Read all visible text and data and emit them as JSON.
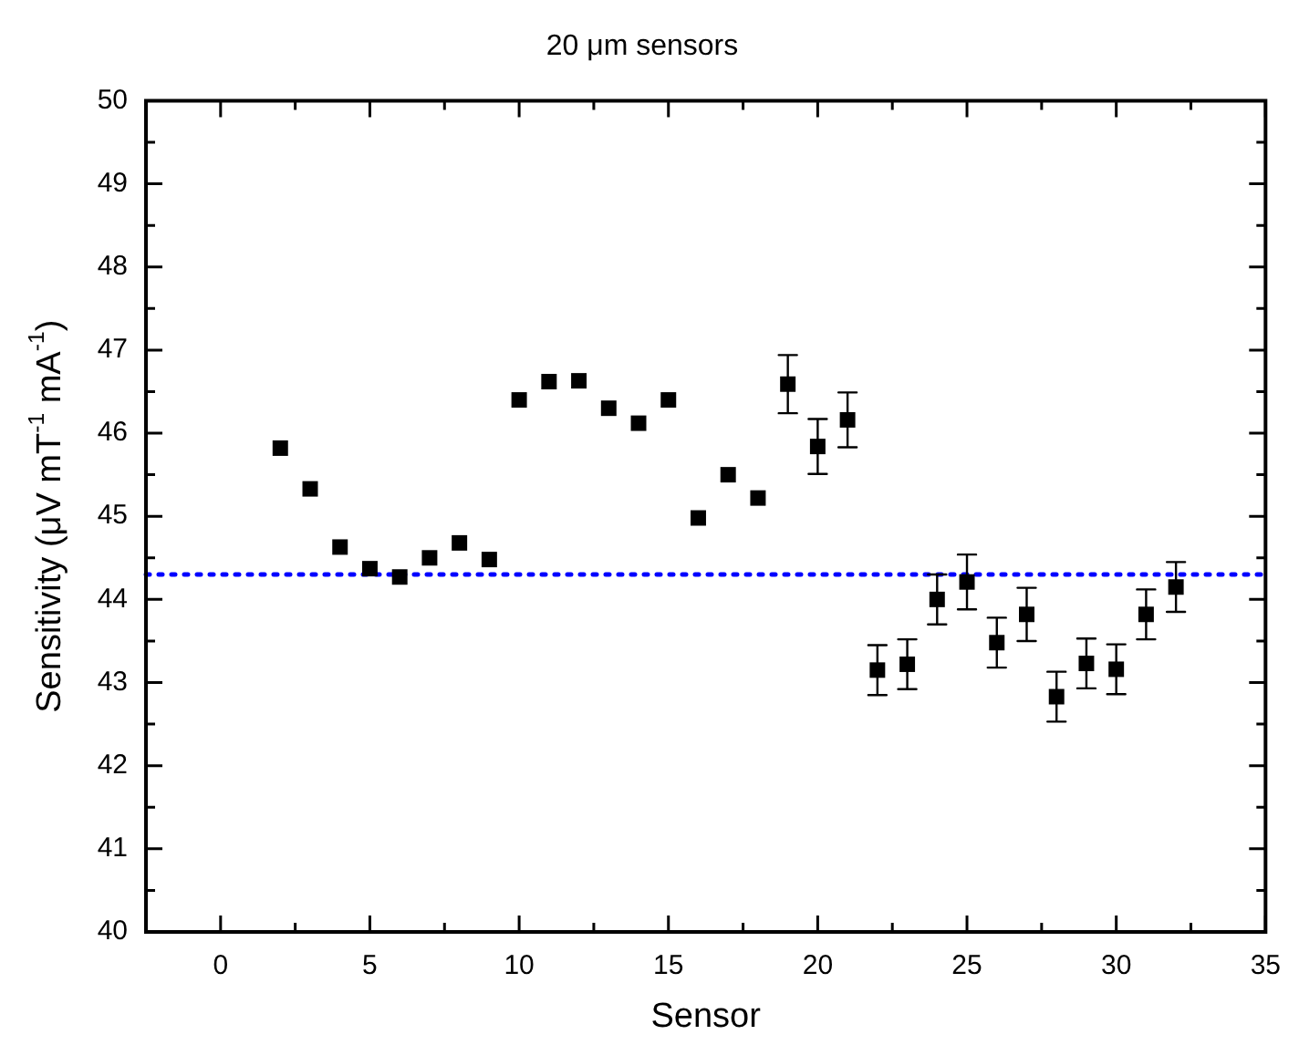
{
  "chart_data": {
    "type": "scatter",
    "title": "20 μm sensors",
    "xlabel": "Sensor",
    "ylabel": "Sensitivity (μV mT$^{-1}$ mA$^{-1}$)",
    "x": [
      2,
      3,
      4,
      5,
      6,
      7,
      8,
      9,
      10,
      11,
      12,
      13,
      14,
      15,
      16,
      17,
      18,
      19,
      20,
      21,
      22,
      23,
      24,
      25,
      26,
      27,
      28,
      29,
      30,
      31,
      32
    ],
    "series": [
      {
        "color": "#000000",
        "values": [
          45.82,
          45.33,
          44.63,
          44.37,
          44.27,
          44.5,
          44.68,
          44.48,
          46.4,
          46.62,
          46.63,
          46.3,
          46.12,
          46.4,
          44.98,
          45.5,
          45.22,
          46.59,
          45.84,
          46.16,
          43.15,
          43.22,
          44.0,
          44.21,
          43.48,
          43.82,
          42.83,
          43.23,
          43.16,
          43.82,
          44.15
        ],
        "errors": [
          null,
          null,
          null,
          null,
          null,
          null,
          null,
          null,
          null,
          null,
          null,
          null,
          null,
          null,
          null,
          null,
          null,
          0.35,
          0.33,
          0.33,
          0.3,
          0.3,
          0.3,
          0.33,
          0.3,
          0.32,
          0.3,
          0.3,
          0.3,
          0.3,
          0.3
        ]
      }
    ],
    "xlim": [
      -2.5,
      35
    ],
    "xticks": [
      0,
      {
        "value": 2.5,
        "label": null
      },
      5,
      {
        "value": 7.5,
        "label": null
      },
      10,
      {
        "value": 12.5,
        "label": null
      },
      15,
      {
        "value": 17.5,
        "label": null
      },
      20,
      {
        "value": 22.5,
        "label": null
      },
      25,
      {
        "value": 27.5,
        "label": null
      },
      30,
      {
        "value": 32.5,
        "label": null
      },
      35
    ],
    "ylim": [
      40,
      50
    ],
    "yticks": [
      40,
      {
        "value": 40.5,
        "label": null
      },
      41,
      {
        "value": 41.5,
        "label": null
      },
      42,
      {
        "value": 42.5,
        "label": null
      },
      43,
      {
        "value": 43.5,
        "label": null
      },
      44,
      {
        "value": 44.5,
        "label": null
      },
      45,
      {
        "value": 45.5,
        "label": null
      },
      46,
      {
        "value": 46.5,
        "label": null
      },
      47,
      {
        "value": 47.5,
        "label": null
      },
      48,
      {
        "value": 48.5,
        "label": null
      },
      49,
      {
        "value": 49.5,
        "label": null
      },
      50
    ],
    "ref_lines": [
      {
        "axis": "y",
        "value": 44.3,
        "color": "#0000ff",
        "line_style": "dotted"
      }
    ],
    "marker": "square",
    "grid": false,
    "legend": false
  }
}
